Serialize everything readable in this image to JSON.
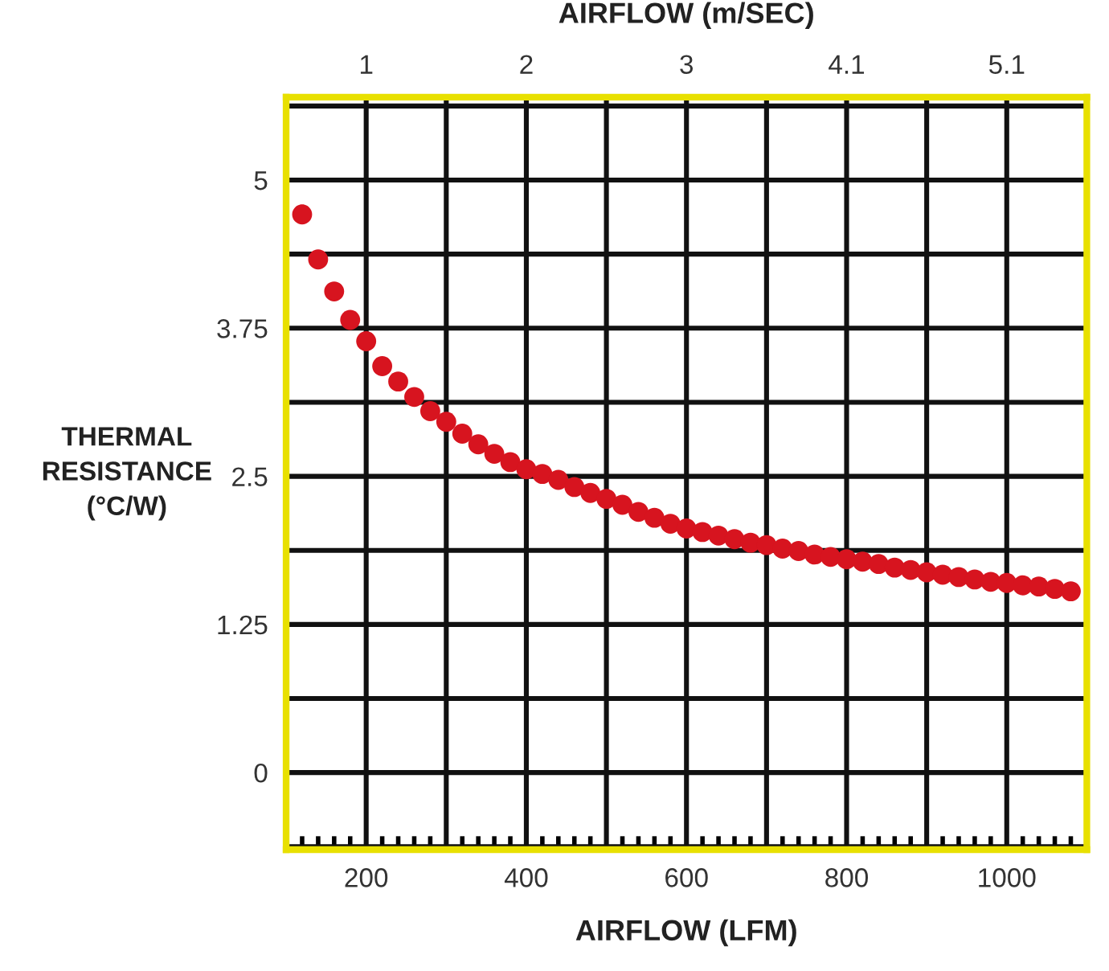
{
  "chart_data": {
    "type": "scatter",
    "xlabel": "AIRFLOW (LFM)",
    "x2label": "AIRFLOW (m/SEC)",
    "ylabel": "THERMAL\nRESISTANCE\n(°C/W)",
    "x": [
      120,
      140,
      160,
      180,
      200,
      220,
      240,
      260,
      280,
      300,
      320,
      340,
      360,
      380,
      400,
      420,
      440,
      460,
      480,
      500,
      520,
      540,
      560,
      580,
      600,
      620,
      640,
      660,
      680,
      700,
      720,
      740,
      760,
      780,
      800,
      820,
      840,
      860,
      880,
      900,
      920,
      940,
      960,
      980,
      1000,
      1020,
      1040,
      1060,
      1080
    ],
    "series": [
      {
        "color": "#d7141f",
        "values": [
          4.71,
          4.33,
          4.06,
          3.82,
          3.64,
          3.43,
          3.3,
          3.17,
          3.05,
          2.96,
          2.86,
          2.77,
          2.69,
          2.62,
          2.56,
          2.52,
          2.47,
          2.41,
          2.36,
          2.31,
          2.26,
          2.2,
          2.15,
          2.1,
          2.06,
          2.03,
          2.0,
          1.97,
          1.94,
          1.92,
          1.89,
          1.87,
          1.84,
          1.82,
          1.8,
          1.78,
          1.76,
          1.73,
          1.71,
          1.69,
          1.67,
          1.65,
          1.63,
          1.61,
          1.6,
          1.58,
          1.57,
          1.55,
          1.53
        ]
      }
    ],
    "marker": "circle",
    "xlim": [
      100,
      1100
    ],
    "xticks": [
      {
        "value": 100,
        "label": null
      },
      200,
      {
        "value": 300,
        "label": null
      },
      400,
      {
        "value": 500,
        "label": null
      },
      600,
      {
        "value": 700,
        "label": null
      },
      800,
      {
        "value": 900,
        "label": null
      },
      1000
    ],
    "x2lim": [
      0.508,
      5.588
    ],
    "x2ticks": [
      {
        "value": 1.016,
        "label": "1"
      },
      {
        "value": 2.032,
        "label": "2"
      },
      {
        "value": 3.048,
        "label": "3"
      },
      {
        "value": 4.064,
        "label": "4.1"
      },
      {
        "value": 5.08,
        "label": "5.1"
      }
    ],
    "ylim": [
      -0.65,
      5.7
    ],
    "yticks": [
      {
        "value": -0.625,
        "label": null
      },
      0,
      {
        "value": 0.625,
        "label": null
      },
      1.25,
      {
        "value": 1.875,
        "label": null
      },
      2.5,
      {
        "value": 3.125,
        "label": null
      },
      3.75,
      {
        "value": 4.375,
        "label": null
      },
      5,
      {
        "value": 5.625,
        "label": null
      }
    ],
    "grid": true
  }
}
